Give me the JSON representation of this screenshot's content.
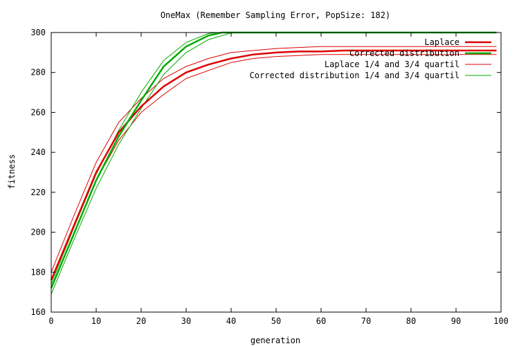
{
  "chart_data": {
    "type": "line",
    "title": "OneMax (Remember Sampling Error, PopSize: 182)",
    "xlabel": "generation",
    "ylabel": "fitness",
    "xlim": [
      0,
      100
    ],
    "ylim": [
      160,
      300
    ],
    "xticks": [
      0,
      10,
      20,
      30,
      40,
      50,
      60,
      70,
      80,
      90,
      100
    ],
    "yticks": [
      160,
      180,
      200,
      220,
      240,
      260,
      280,
      300
    ],
    "grid": false,
    "legend_position": "top-right",
    "series": [
      {
        "name": "Laplace",
        "color": "#dd0000",
        "line_weight": "thick",
        "x": [
          0,
          5,
          10,
          15,
          20,
          25,
          30,
          35,
          40,
          45,
          50,
          55,
          60,
          65,
          70,
          75,
          80,
          85,
          90,
          95,
          99
        ],
        "y": [
          176,
          203,
          230,
          250,
          263,
          273,
          280,
          284,
          287,
          289,
          290,
          290.5,
          290.5,
          291,
          291,
          291,
          291,
          291,
          291,
          291,
          291
        ]
      },
      {
        "name": "Corrected distribution",
        "color": "#00aa00",
        "line_weight": "thick",
        "x": [
          0,
          5,
          10,
          15,
          20,
          25,
          30,
          35,
          38,
          40,
          50,
          60,
          70,
          80,
          90,
          99
        ],
        "y": [
          172,
          199,
          226,
          248,
          266,
          283,
          293,
          298.5,
          300,
          300,
          300,
          300,
          300,
          300,
          300,
          300
        ]
      },
      {
        "name": "Laplace 1/4 and 3/4 quartil",
        "color": "#dd0000",
        "line_weight": "thin",
        "lines": [
          {
            "x": [
              0,
              5,
              10,
              15,
              20,
              25,
              30,
              35,
              40,
              45,
              50,
              55,
              60,
              65,
              70,
              75,
              80,
              85,
              90,
              95,
              99
            ],
            "y": [
              180,
              208,
              235,
              255,
              267,
              277,
              283,
              287,
              290,
              291,
              292,
              292.5,
              293,
              293,
              293,
              293,
              293,
              293,
              293,
              293,
              293
            ]
          },
          {
            "x": [
              0,
              5,
              10,
              15,
              20,
              25,
              30,
              35,
              40,
              45,
              50,
              55,
              60,
              65,
              70,
              75,
              80,
              85,
              90,
              95,
              99
            ],
            "y": [
              172,
              199,
              226,
              246,
              260,
              269,
              277,
              281,
              285,
              287,
              288,
              288.5,
              289,
              289,
              289,
              289,
              289,
              289,
              289,
              289,
              289
            ]
          }
        ]
      },
      {
        "name": "Corrected distribution 1/4 and 3/4 quartil",
        "color": "#00aa00",
        "line_weight": "thin",
        "lines": [
          {
            "x": [
              0,
              5,
              10,
              15,
              20,
              25,
              30,
              35,
              37,
              40,
              50,
              60,
              70,
              80,
              90,
              99
            ],
            "y": [
              174,
              202,
              229,
              251,
              270,
              286,
              295,
              299.5,
              300,
              300,
              300,
              300,
              300,
              300,
              300,
              300
            ]
          },
          {
            "x": [
              0,
              5,
              10,
              15,
              20,
              25,
              30,
              35,
              40,
              41,
              50,
              60,
              70,
              80,
              90,
              99
            ],
            "y": [
              169,
              196,
              222,
              244,
              262,
              279,
              290,
              296.5,
              299.8,
              300,
              300,
              300,
              300,
              300,
              300,
              300
            ]
          }
        ]
      }
    ]
  }
}
